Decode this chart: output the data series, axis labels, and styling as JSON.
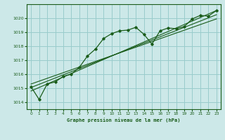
{
  "title": "",
  "xlabel": "Graphe pression niveau de la mer (hPa)",
  "bg_color": "#cce8e8",
  "grid_color": "#99cccc",
  "line_color": "#1a5c1a",
  "text_color": "#1a5c1a",
  "xlim": [
    -0.5,
    23.5
  ],
  "ylim": [
    1013.5,
    1021.0
  ],
  "yticks": [
    1014,
    1015,
    1016,
    1017,
    1018,
    1019,
    1020
  ],
  "xticks": [
    0,
    1,
    2,
    3,
    4,
    5,
    6,
    7,
    8,
    9,
    10,
    11,
    12,
    13,
    14,
    15,
    16,
    17,
    18,
    19,
    20,
    21,
    22,
    23
  ],
  "hours": [
    0,
    1,
    2,
    3,
    4,
    5,
    6,
    7,
    8,
    9,
    10,
    11,
    12,
    13,
    14,
    15,
    16,
    17,
    18,
    19,
    20,
    21,
    22,
    23
  ],
  "pressure": [
    1015.1,
    1014.2,
    1015.3,
    1015.45,
    1015.85,
    1016.0,
    1016.5,
    1017.3,
    1017.8,
    1018.55,
    1018.9,
    1019.1,
    1019.15,
    1019.35,
    1018.85,
    1018.15,
    1019.1,
    1019.3,
    1019.25,
    1019.4,
    1019.95,
    1020.2,
    1020.15,
    1020.55
  ],
  "trend_lines": [
    {
      "x0": 0,
      "y0": 1014.8,
      "x1": 23,
      "y1": 1020.55
    },
    {
      "x0": 0,
      "y0": 1015.05,
      "x1": 23,
      "y1": 1020.25
    },
    {
      "x0": 0,
      "y0": 1015.3,
      "x1": 23,
      "y1": 1019.95
    }
  ]
}
